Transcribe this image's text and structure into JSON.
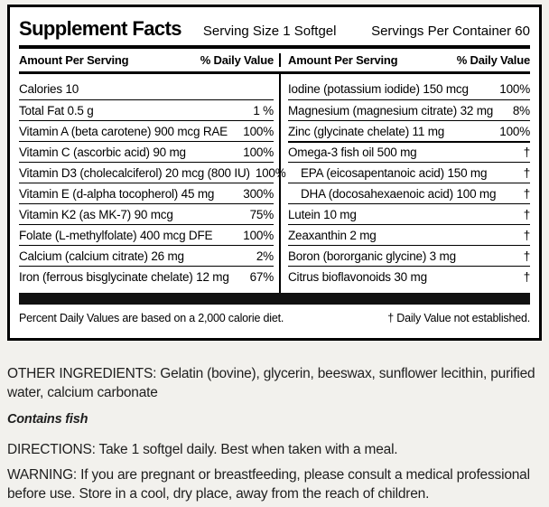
{
  "label": {
    "title": "Supplement Facts",
    "serving_size": "Serving Size 1 Softgel",
    "servings_per_container": "Servings Per Container 60",
    "column_header_amount": "Amount Per Serving",
    "column_header_dv": "% Daily Value",
    "left_rows": [
      {
        "name": "Calories 10",
        "value": ""
      },
      {
        "name": "Total Fat  0.5 g",
        "value": "1 %"
      },
      {
        "name": "Vitamin A (beta carotene) 900 mcg RAE",
        "value": "100%"
      },
      {
        "name": "Vitamin C (ascorbic acid) 90 mg",
        "value": "100%"
      },
      {
        "name": "Vitamin D3 (cholecalciferol) 20 mcg (800 IU)",
        "value": "100%"
      },
      {
        "name": "Vitamin E (d-alpha tocopherol) 45 mg",
        "value": "300%"
      },
      {
        "name": "Vitamin K2 (as MK-7) 90 mcg",
        "value": "75%"
      },
      {
        "name": "Folate (L-methylfolate) 400 mcg DFE",
        "value": "100%"
      },
      {
        "name": "Calcium (calcium citrate) 26 mg",
        "value": "2%"
      },
      {
        "name": "Iron (ferrous bisglycinate chelate) 12 mg",
        "value": "67%"
      }
    ],
    "right_rows": [
      {
        "name": "Iodine (potassium iodide) 150 mcg",
        "value": "100%"
      },
      {
        "name": "Magnesium (magnesium citrate) 32 mg",
        "value": "8%"
      },
      {
        "name": "Zinc (glycinate chelate) 11 mg",
        "value": "100%"
      },
      {
        "name": "Omega-3 fish oil 500 mg",
        "value": "†",
        "section_rule": true
      },
      {
        "name": "EPA (eicosapentanoic acid) 150 mg",
        "value": "†",
        "indent": true
      },
      {
        "name": "DHA (docosahexaenoic acid) 100 mg",
        "value": "†",
        "indent": true
      },
      {
        "name": "Lutein 10 mg",
        "value": "†"
      },
      {
        "name": "Zeaxanthin 2 mg",
        "value": "†"
      },
      {
        "name": "Boron (bororganic glycine) 3 mg",
        "value": "†"
      },
      {
        "name": "Citrus bioflavonoids 30 mg",
        "value": "†"
      }
    ],
    "footnote_left": "Percent Daily Values are based on a 2,000 calorie diet.",
    "footnote_right": "† Daily Value not established."
  },
  "below": {
    "other_ingredients": "OTHER INGREDIENTS: Gelatin (bovine), glycerin, beeswax, sunflower lecithin, purified water, calcium carbonate",
    "contains": "Contains fish",
    "directions": "DIRECTIONS: Take 1 softgel daily. Best when taken with a meal.",
    "warning": "WARNING: If you are pregnant or breastfeeding, please consult a medical professional before use. Store in a cool, dry place, away from the reach of children."
  },
  "colors": {
    "background": "#f2f1ed",
    "panel": "#ffffff",
    "rule": "#000000",
    "text": "#1e1e1e"
  }
}
